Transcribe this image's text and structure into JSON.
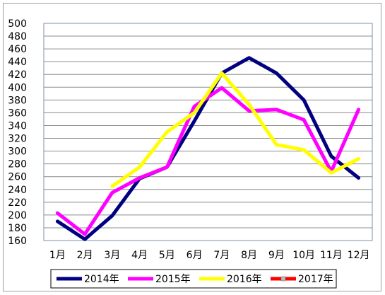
{
  "chart_data": {
    "type": "line",
    "title": "",
    "xlabel": "",
    "ylabel": "",
    "categories": [
      "1月",
      "2月",
      "3月",
      "4月",
      "5月",
      "6月",
      "7月",
      "8月",
      "9月",
      "10月",
      "11月",
      "12月"
    ],
    "ylim": [
      160,
      500
    ],
    "yticks": [
      160,
      180,
      200,
      220,
      240,
      260,
      280,
      300,
      320,
      340,
      360,
      380,
      400,
      420,
      440,
      460,
      480,
      500
    ],
    "grid": true,
    "legend_position": "bottom",
    "series": [
      {
        "name": "2014年",
        "color": "#000080",
        "values": [
          190,
          162,
          199,
          257,
          275,
          347,
          422,
          446,
          422,
          380,
          292,
          258
        ]
      },
      {
        "name": "2015年",
        "color": "#ff00ff",
        "values": [
          203,
          170,
          235,
          258,
          275,
          370,
          399,
          363,
          365,
          349,
          268,
          365
        ]
      },
      {
        "name": "2016年",
        "color": "#ffff00",
        "values": [
          null,
          null,
          245,
          275,
          330,
          360,
          422,
          373,
          310,
          302,
          266,
          288
        ]
      },
      {
        "name": "2017年",
        "color": "#ff0000",
        "values": [
          null,
          null,
          null,
          null,
          null,
          null,
          null,
          null,
          null,
          null,
          null,
          null
        ]
      }
    ]
  }
}
